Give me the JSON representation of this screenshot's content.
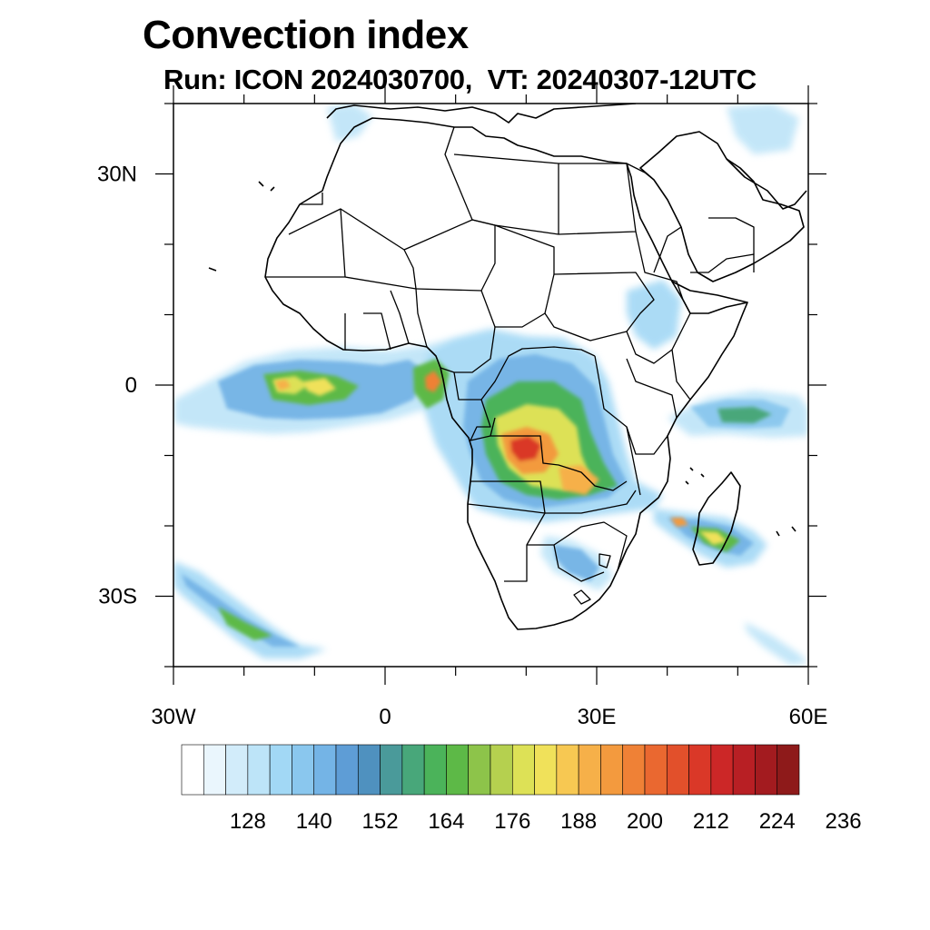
{
  "title": "Convection index",
  "subtitle": "Run: ICON 2024030700,  VT: 20240307-12UTC",
  "map": {
    "lon_range": [
      -30,
      60
    ],
    "lat_range": [
      -40,
      40
    ],
    "lat_ticks": [
      {
        "value": 30,
        "label": "30N"
      },
      {
        "value": 0,
        "label": "0"
      },
      {
        "value": -30,
        "label": "30S"
      }
    ],
    "lon_ticks": [
      {
        "value": -30,
        "label": "30W"
      },
      {
        "value": 0,
        "label": "0"
      },
      {
        "value": 30,
        "label": "30E"
      },
      {
        "value": 60,
        "label": "60E"
      }
    ]
  },
  "colorbar": {
    "colors": [
      "#ffffff",
      "#eaf6fd",
      "#d2ecfa",
      "#bde4f8",
      "#a2d8f5",
      "#8ac7ee",
      "#74b4e6",
      "#5e9dd6",
      "#4f91bf",
      "#4a9a9a",
      "#48a77a",
      "#4bb35a",
      "#5db947",
      "#8dc44a",
      "#b5d04f",
      "#dde156",
      "#f0e15a",
      "#f7c852",
      "#f6b049",
      "#f39a3e",
      "#ef8136",
      "#ea6830",
      "#e2502b",
      "#da3828",
      "#cc2727",
      "#b81f24",
      "#a31b1f",
      "#8e1a1a"
    ],
    "labels": [
      "128",
      "140",
      "152",
      "164",
      "176",
      "188",
      "200",
      "212",
      "224",
      "236"
    ]
  }
}
